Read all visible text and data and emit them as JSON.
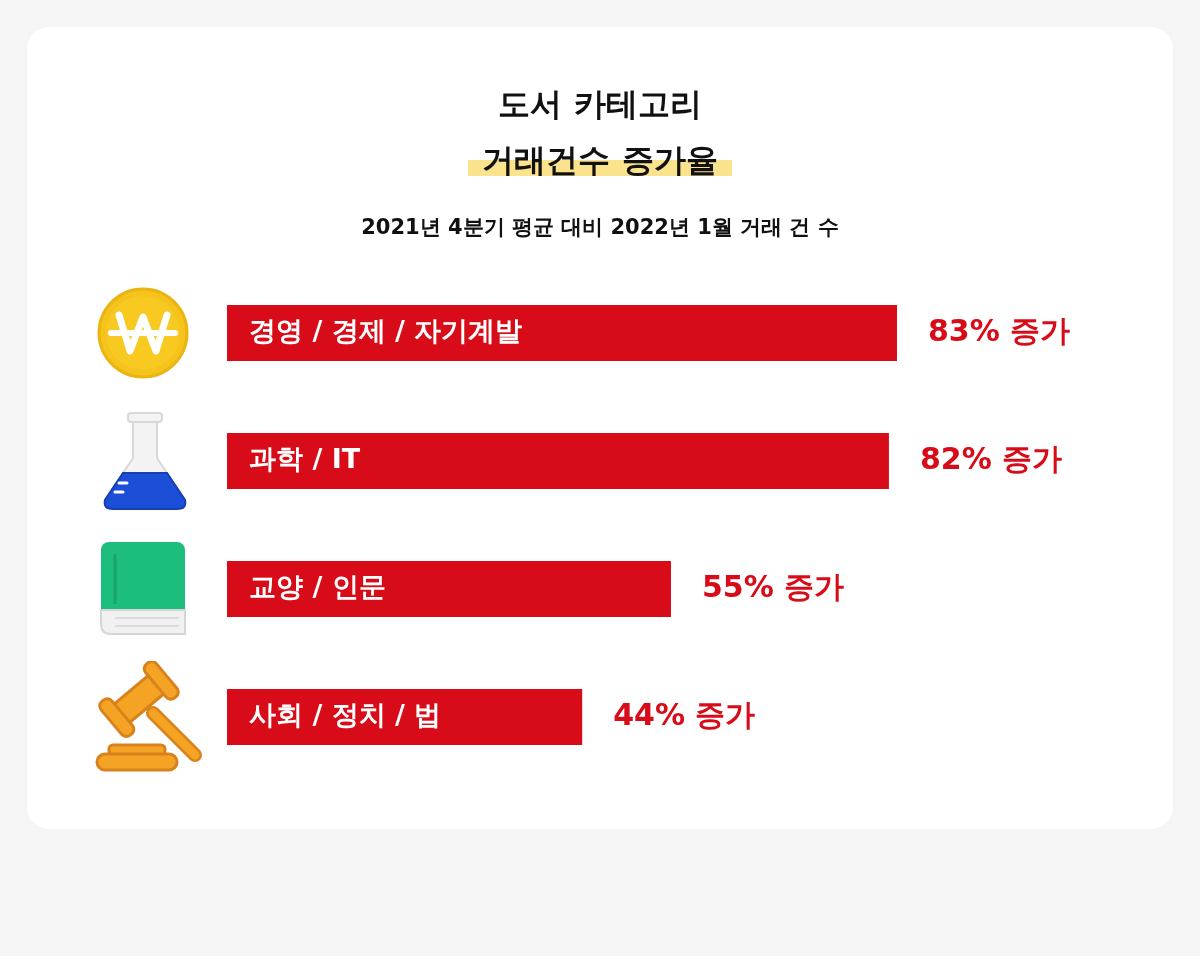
{
  "chart_data": {
    "type": "bar",
    "orientation": "horizontal",
    "title": "도서 카테고리\n거래건수 증가율",
    "subtitle": "2021년 4분기 평균 대비 2022년 1월 거래 건 수",
    "categories": [
      "경영 / 경제 / 자기계발",
      "과학 / IT",
      "교양 / 인문",
      "사회 / 정치 / 법"
    ],
    "values": [
      83,
      82,
      55,
      44
    ],
    "value_labels": [
      "83% 증가",
      "82% 증가",
      "55% 증가",
      "44% 증가"
    ],
    "color": "#d70c18",
    "tick_labels": "y"
  }
}
